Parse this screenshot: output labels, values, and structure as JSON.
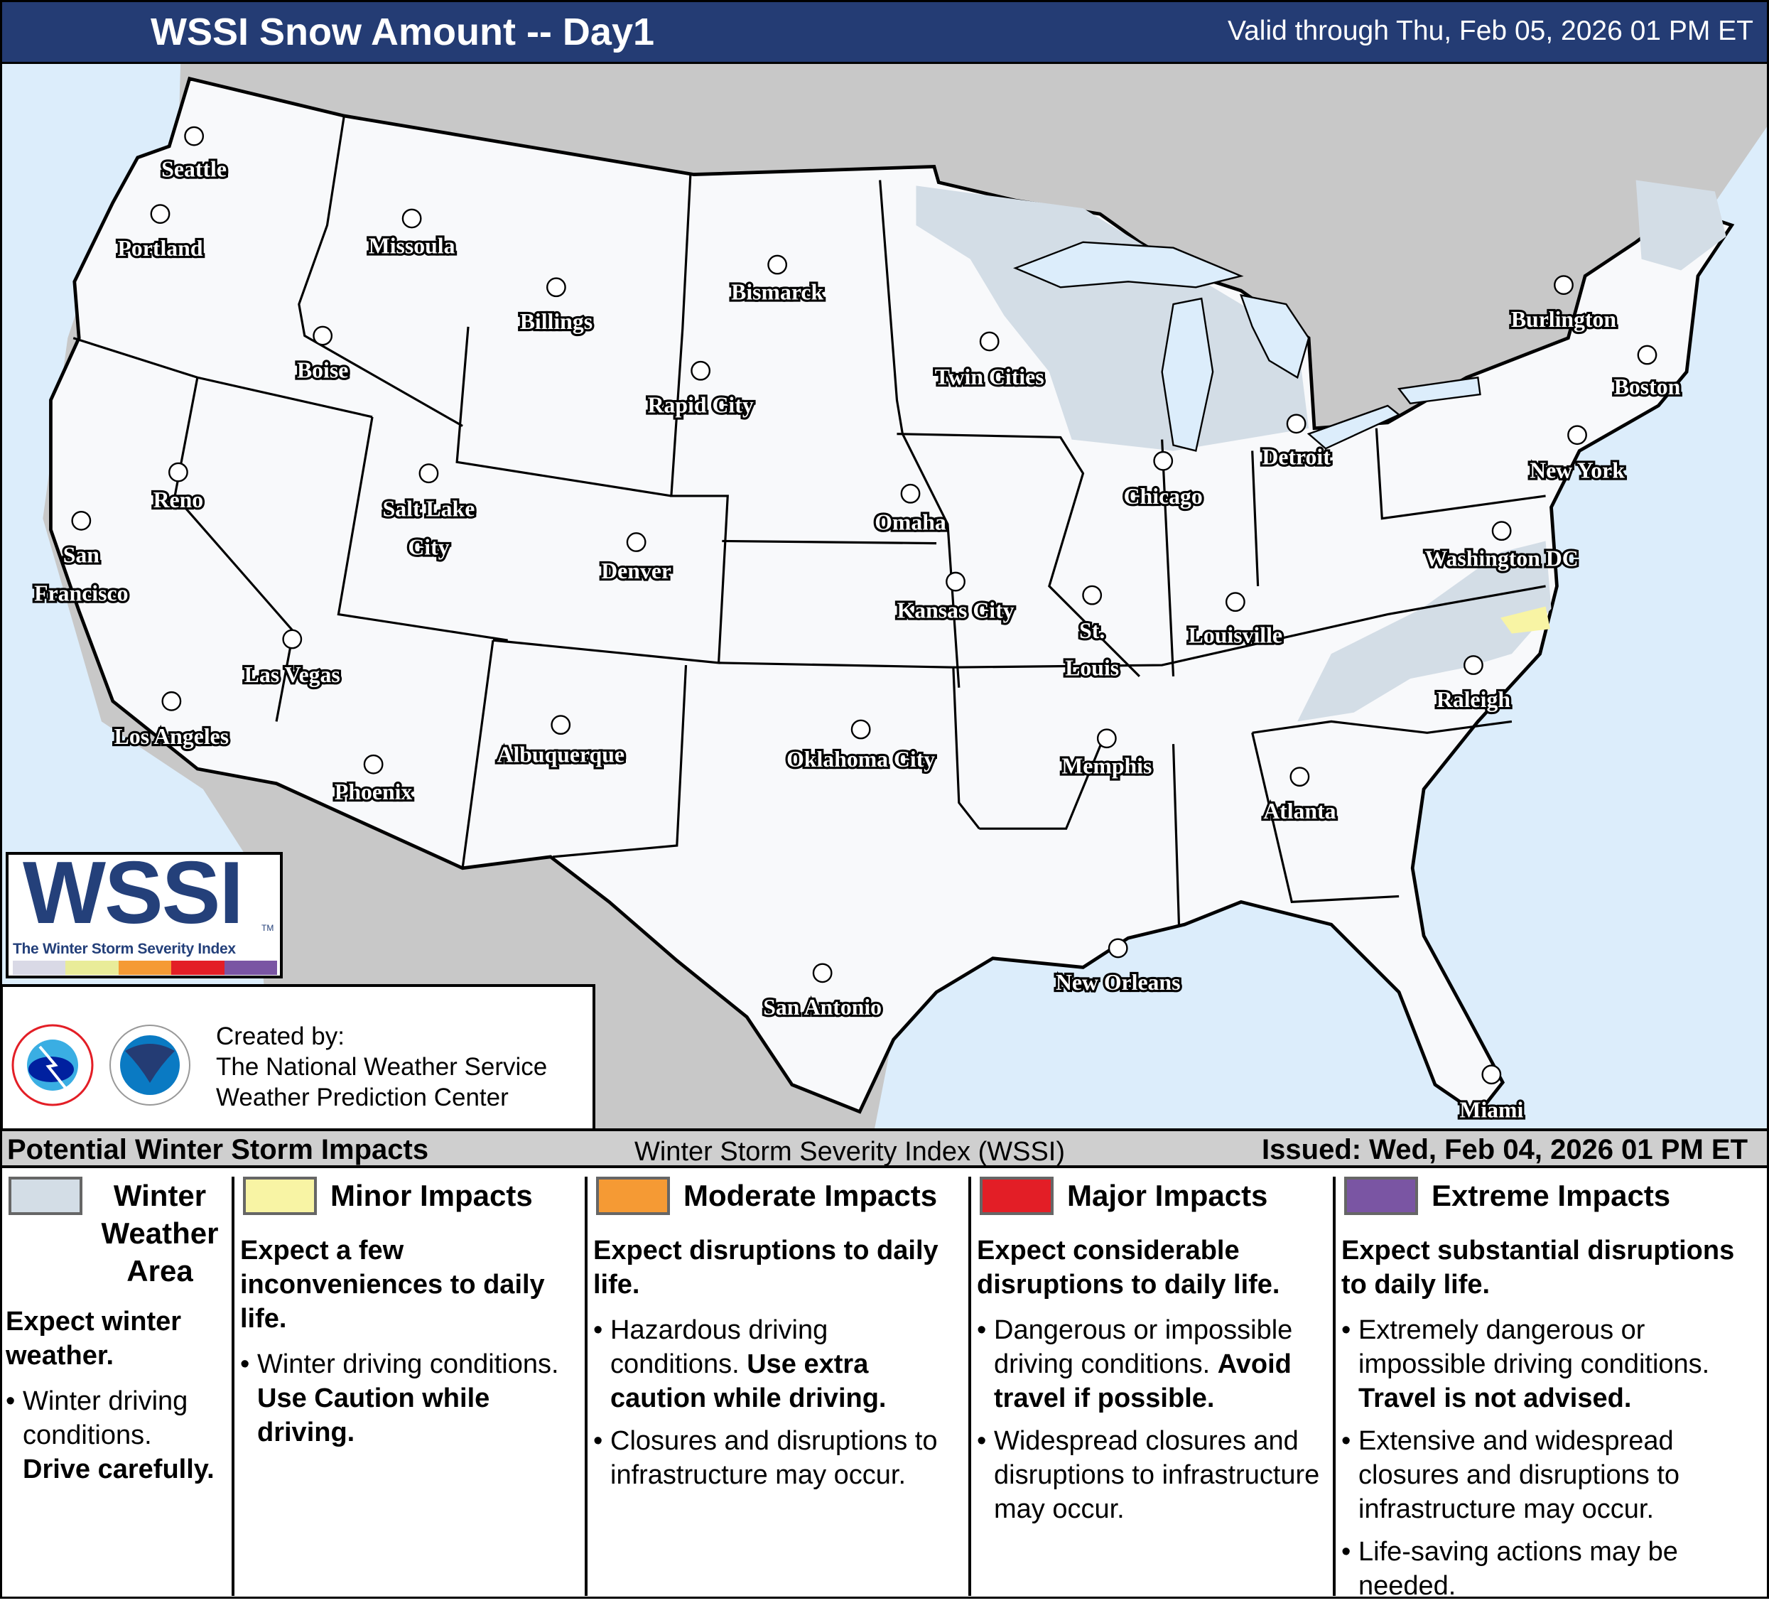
{
  "header": {
    "title": "WSSI Snow Amount -- Day1",
    "valid": "Valid through Thu, Feb 05, 2026 01 PM ET"
  },
  "map": {
    "colors": {
      "ocean": "#dcedfb",
      "land_other": "#c8c8c8",
      "us_land": "#f8f9fb",
      "winter_weather_area": "#d3dde6",
      "minor": "#f8f4a4"
    },
    "cities": [
      "Seattle",
      "Portland",
      "Missoula",
      "Billings",
      "Bismarck",
      "Boise",
      "Rapid City",
      "Twin Cities",
      "Reno",
      "Salt Lake City",
      "San Francisco",
      "Denver",
      "Omaha",
      "Chicago",
      "Detroit",
      "Burlington",
      "Boston",
      "New York",
      "Washington DC",
      "Kansas City",
      "St. Louis",
      "Louisville",
      "Las Vegas",
      "Los Angeles",
      "Raleigh",
      "Memphis",
      "Oklahoma City",
      "Albuquerque",
      "Phoenix",
      "Atlanta",
      "New Orleans",
      "San Antonio",
      "Miami"
    ]
  },
  "logo": {
    "wordmark": "WSSI",
    "tm": "TM",
    "subtitle": "The Winter Storm Severity Index",
    "scale_colors": [
      "#d9d9e6",
      "#e9ec99",
      "#f59a34",
      "#e31e26",
      "#7a55a3"
    ]
  },
  "credit": {
    "line1": "Created by:",
    "line2": "The National Weather Service",
    "line3": "Weather Prediction Center",
    "logos": [
      "nws-logo",
      "noaa-logo"
    ]
  },
  "legend": {
    "title": "Potential Winter Storm Impacts",
    "index_name": "Winter Storm Severity Index (WSSI)",
    "issued": "Issued: Wed, Feb 04, 2026 01 PM ET",
    "categories": [
      {
        "name": "Winter Weather Area",
        "color": "#d3dde6",
        "headline": "Expect winter weather.",
        "bullets": [
          {
            "text": "Winter driving conditions. ",
            "bold": "Drive carefully."
          }
        ]
      },
      {
        "name": "Minor Impacts",
        "color": "#f8f4a4",
        "headline": "Expect a few inconveniences to daily life.",
        "bullets": [
          {
            "text": "Winter driving conditions. ",
            "bold": "Use Caution while driving."
          }
        ]
      },
      {
        "name": "Moderate Impacts",
        "color": "#f59a34",
        "headline": "Expect disruptions to daily life.",
        "bullets": [
          {
            "text": "Hazardous driving conditions. ",
            "bold": "Use extra caution while driving."
          },
          {
            "text": "Closures and disruptions to infrastructure may occur.",
            "bold": ""
          }
        ]
      },
      {
        "name": "Major Impacts",
        "color": "#e31e26",
        "headline": "Expect considerable disruptions to daily life.",
        "bullets": [
          {
            "text": "Dangerous or impossible driving conditions. ",
            "bold": "Avoid travel if possible."
          },
          {
            "text": "Widespread closures and disruptions to infrastructure may occur.",
            "bold": ""
          }
        ]
      },
      {
        "name": "Extreme Impacts",
        "color": "#7a55a3",
        "headline": "Expect substantial disruptions to daily life.",
        "bullets": [
          {
            "text": "Extremely dangerous or impossible driving conditions. ",
            "bold": "Travel is not advised."
          },
          {
            "text": "Extensive and widespread closures and disruptions to infrastructure may occur.",
            "bold": ""
          },
          {
            "text": "Life-saving actions may be needed.",
            "bold": ""
          }
        ]
      }
    ]
  }
}
